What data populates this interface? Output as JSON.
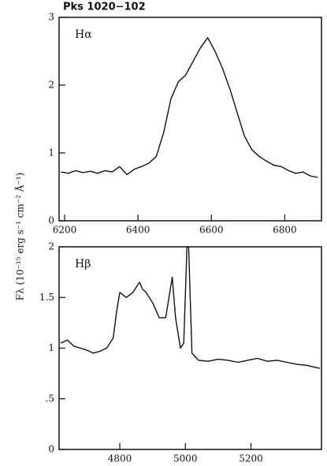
{
  "title": "Pks 1020−102",
  "ylabel": "Fλ (10⁻¹⁵ erg s⁻¹ cm⁻² Å⁻¹)",
  "chart_data": [
    {
      "type": "line",
      "label": "Hα",
      "color": "#111111",
      "x": [
        6190,
        6210,
        6230,
        6250,
        6270,
        6290,
        6310,
        6330,
        6350,
        6370,
        6390,
        6410,
        6430,
        6450,
        6470,
        6490,
        6510,
        6530,
        6550,
        6570,
        6590,
        6610,
        6630,
        6650,
        6670,
        6690,
        6710,
        6730,
        6750,
        6770,
        6790,
        6810,
        6830,
        6850,
        6870,
        6890
      ],
      "values": [
        0.72,
        0.7,
        0.74,
        0.71,
        0.73,
        0.7,
        0.74,
        0.72,
        0.8,
        0.68,
        0.76,
        0.8,
        0.85,
        0.95,
        1.3,
        1.8,
        2.05,
        2.15,
        2.35,
        2.55,
        2.7,
        2.5,
        2.25,
        1.95,
        1.6,
        1.25,
        1.05,
        0.95,
        0.88,
        0.82,
        0.8,
        0.74,
        0.7,
        0.72,
        0.66,
        0.64
      ],
      "xlim": [
        6185,
        6900
      ],
      "xticks": [
        6200,
        6400,
        6600,
        6800
      ],
      "ylim": [
        0,
        3
      ],
      "yticks": [
        0,
        1,
        2,
        3
      ]
    },
    {
      "type": "line",
      "label": "Hβ",
      "color": "#111111",
      "x": [
        4620,
        4640,
        4660,
        4680,
        4700,
        4720,
        4740,
        4760,
        4780,
        4790,
        4800,
        4820,
        4840,
        4860,
        4870,
        4880,
        4900,
        4920,
        4940,
        4955,
        4960,
        4970,
        4985,
        4995,
        5005,
        5010,
        5020,
        5040,
        5070,
        5100,
        5130,
        5160,
        5190,
        5220,
        5250,
        5280,
        5310,
        5340,
        5370,
        5410
      ],
      "values": [
        1.05,
        1.08,
        1.02,
        1.0,
        0.98,
        0.95,
        0.97,
        1.0,
        1.1,
        1.35,
        1.55,
        1.5,
        1.55,
        1.65,
        1.58,
        1.55,
        1.45,
        1.3,
        1.3,
        1.6,
        1.7,
        1.3,
        1.0,
        1.05,
        2.0,
        2.0,
        0.95,
        0.88,
        0.87,
        0.89,
        0.88,
        0.86,
        0.88,
        0.9,
        0.87,
        0.88,
        0.86,
        0.84,
        0.83,
        0.8
      ],
      "xlim": [
        4615,
        5415
      ],
      "xticks": [
        4800,
        5000,
        5200
      ],
      "ylim": [
        0,
        2
      ],
      "yticks": [
        0,
        {
          "value": 0.5,
          "label": ".5"
        },
        1,
        1.5,
        2
      ]
    }
  ]
}
